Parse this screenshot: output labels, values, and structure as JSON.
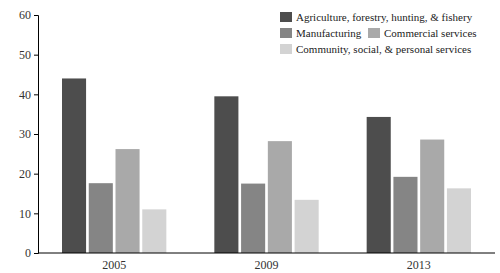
{
  "chart_data": {
    "type": "bar",
    "categories": [
      "2005",
      "2009",
      "2013"
    ],
    "series": [
      {
        "name": "Agriculture, forestry, hunting, & fishery",
        "color": "#4d4d4d",
        "values": [
          44.0,
          39.5,
          34.3
        ]
      },
      {
        "name": "Manufacturing",
        "color": "#858585",
        "values": [
          17.6,
          17.5,
          19.2
        ]
      },
      {
        "name": "Commercial services",
        "color": "#a9a9a9",
        "values": [
          26.2,
          28.2,
          28.6
        ]
      },
      {
        "name": "Community, social, & personal services",
        "color": "#d3d3d3",
        "values": [
          11.0,
          13.4,
          16.3
        ]
      }
    ],
    "ylim": [
      0,
      60
    ],
    "yticks": [
      0,
      10,
      20,
      30,
      40,
      50,
      60
    ],
    "grid": false,
    "legend": "top-right"
  }
}
